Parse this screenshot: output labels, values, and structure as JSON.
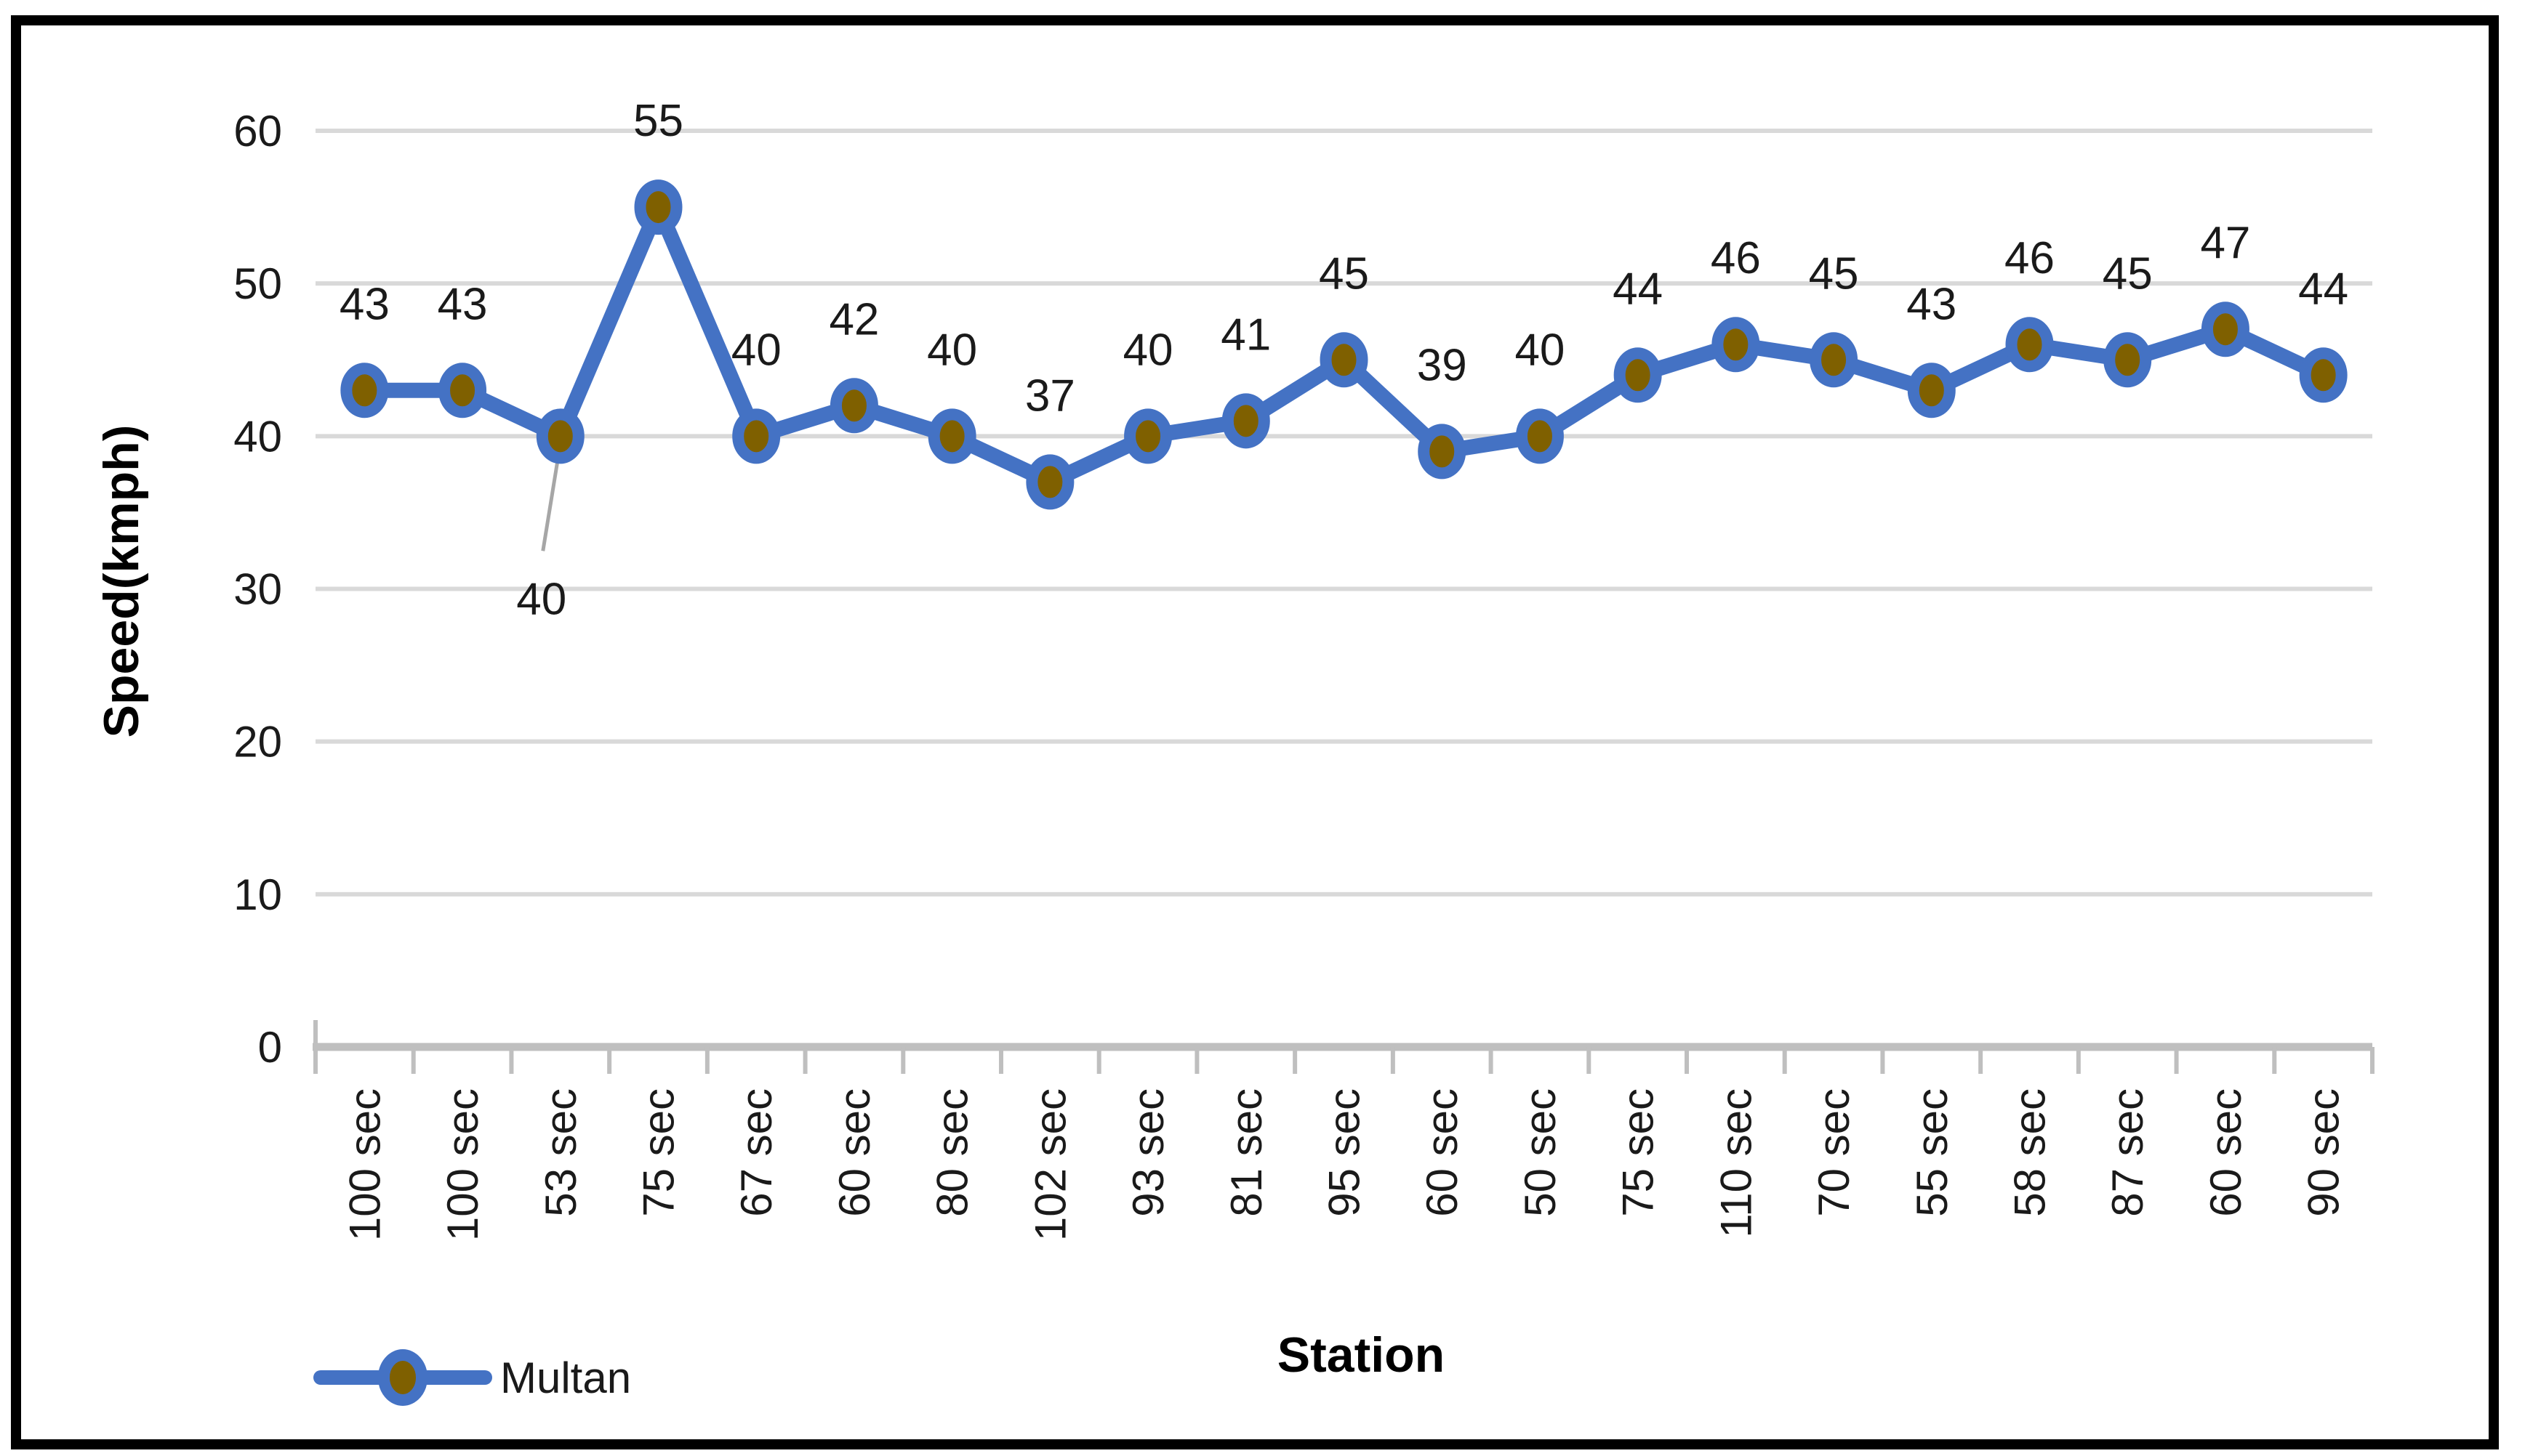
{
  "chart_data": {
    "type": "line",
    "title": "",
    "xlabel": "Station",
    "ylabel": "Speed(kmph)",
    "categories": [
      "100 sec",
      "100 sec",
      "53 sec",
      "75 sec",
      "67 sec",
      "60 sec",
      "80 sec",
      "102 sec",
      "93 sec",
      "81 sec",
      "95 sec",
      "60 sec",
      "50 sec",
      "75 sec",
      "110 sec",
      "70 sec",
      "55 sec",
      "58 sec",
      "87 sec",
      "60 sec",
      "90 sec"
    ],
    "series": [
      {
        "name": "Multan",
        "values": [
          43,
          43,
          40,
          55,
          40,
          42,
          40,
          37,
          40,
          41,
          45,
          39,
          40,
          44,
          46,
          45,
          43,
          46,
          45,
          47,
          44
        ],
        "data_labels": [
          "43",
          "43",
          "40",
          "55",
          "40",
          "42",
          "40",
          "37",
          "40",
          "41",
          "45",
          "39",
          "40",
          "44",
          "46",
          "45",
          "43",
          "46",
          "45",
          "47",
          "44"
        ]
      }
    ],
    "ylim": [
      0,
      60
    ],
    "yticks": [
      0,
      10,
      20,
      30,
      40,
      50,
      60
    ],
    "grid": "horizontal",
    "legend_position": "bottom-left",
    "colors": {
      "line": "#4472C4",
      "marker_fill": "#7F6000",
      "marker_outline": "#4472C4",
      "gridline": "#D9D9D9",
      "axis": "#BFBFBF",
      "leader_line": "#A6A6A6",
      "text": "#1a1a1a",
      "border": "#000000",
      "background": "#FFFFFF"
    }
  }
}
